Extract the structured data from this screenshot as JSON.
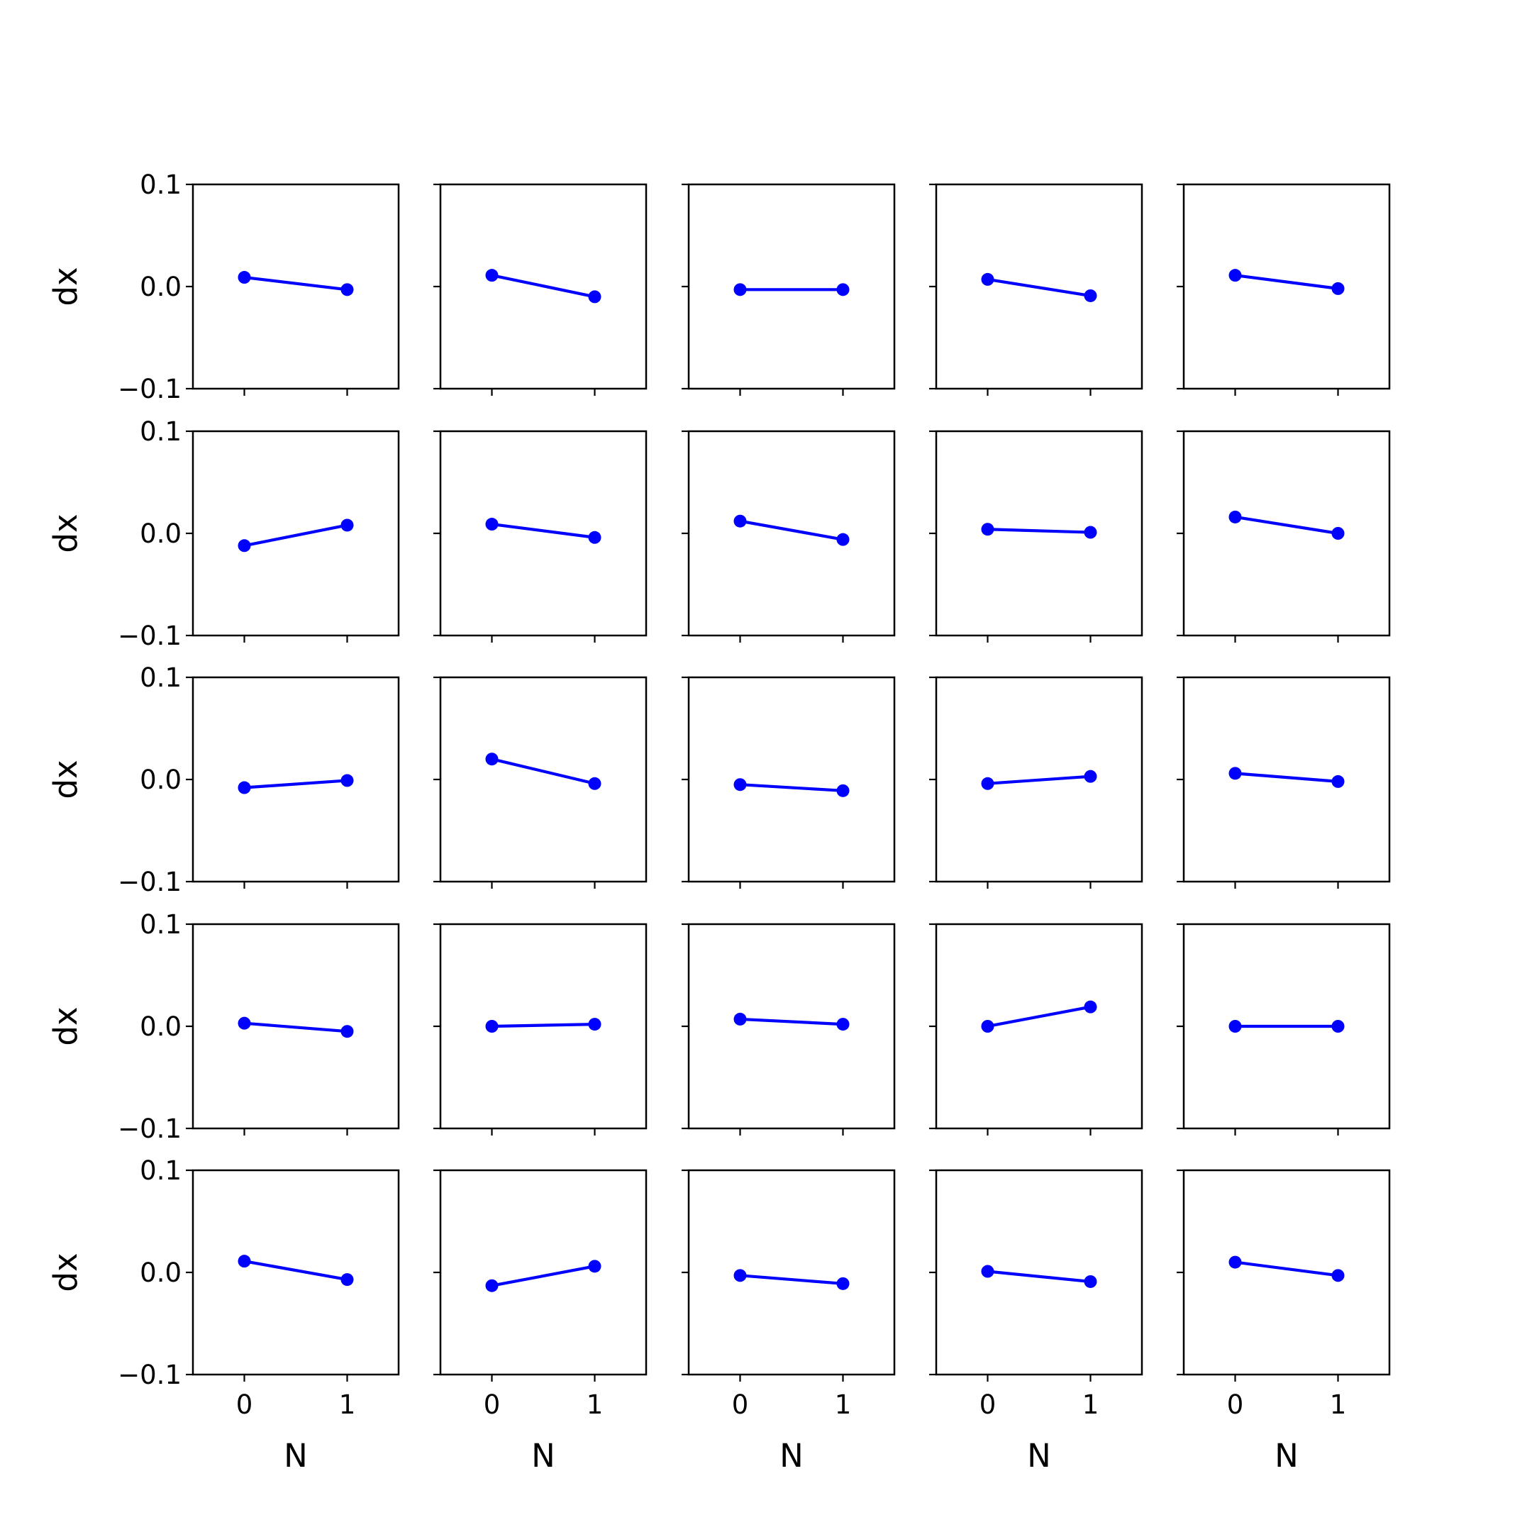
{
  "chart_data": {
    "type": "line",
    "layout": "grid",
    "rows": 5,
    "cols": 5,
    "shared_x": true,
    "shared_y": true,
    "xlabel": "N",
    "ylabel": "dx",
    "xlim": [
      -0.5,
      1.5
    ],
    "ylim": [
      -0.1,
      0.1
    ],
    "xticks": [
      0,
      1
    ],
    "xtick_labels": [
      "0",
      "1"
    ],
    "yticks": [
      -0.1,
      0.0,
      0.1
    ],
    "ytick_labels": [
      "−0.1",
      "0.0",
      "0.1"
    ],
    "grid": false,
    "color": "#0000ff",
    "marker": "circle",
    "x": [
      0,
      1
    ],
    "panels": [
      [
        [
          0.009,
          -0.003
        ],
        [
          0.011,
          -0.01
        ],
        [
          -0.003,
          -0.003
        ],
        [
          0.007,
          -0.009
        ],
        [
          0.011,
          -0.002
        ]
      ],
      [
        [
          -0.012,
          0.008
        ],
        [
          0.009,
          -0.004
        ],
        [
          0.012,
          -0.006
        ],
        [
          0.004,
          0.001
        ],
        [
          0.016,
          0.0
        ]
      ],
      [
        [
          -0.008,
          -0.001
        ],
        [
          0.02,
          -0.004
        ],
        [
          -0.005,
          -0.011
        ],
        [
          -0.004,
          0.003
        ],
        [
          0.006,
          -0.002
        ]
      ],
      [
        [
          0.003,
          -0.005
        ],
        [
          0.0,
          0.002
        ],
        [
          0.007,
          0.002
        ],
        [
          0.0,
          0.019
        ],
        [
          0.0,
          0.0
        ]
      ],
      [
        [
          0.011,
          -0.007
        ],
        [
          -0.013,
          0.006
        ],
        [
          -0.003,
          -0.011
        ],
        [
          0.001,
          -0.009
        ],
        [
          0.01,
          -0.003
        ]
      ]
    ]
  }
}
